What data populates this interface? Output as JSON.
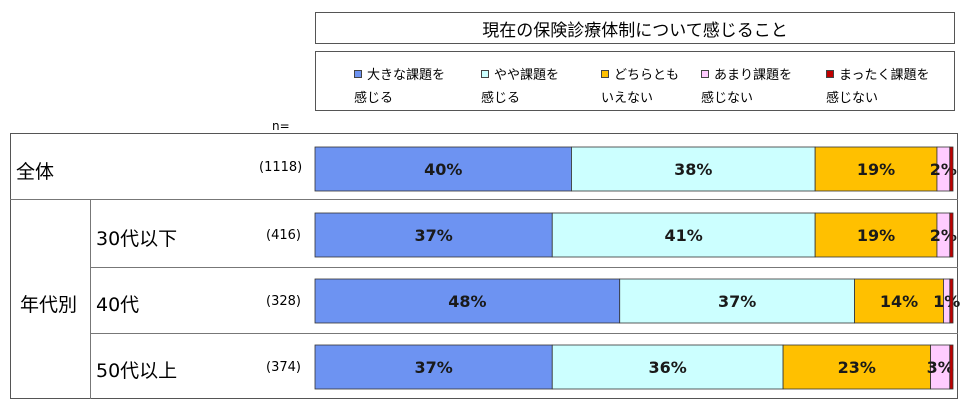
{
  "chart_data": {
    "type": "bar",
    "orientation": "horizontal",
    "stacked": true,
    "percent": true,
    "title": "現在の保険診療体制について感じること",
    "n_header": "n=",
    "group_label": "年代別",
    "legend": [
      {
        "line1": "大きな課題を",
        "line2": "感じる"
      },
      {
        "line1": "やや課題を",
        "line2": "感じる"
      },
      {
        "line1": "どちらとも",
        "line2": "いえない"
      },
      {
        "line1": "あまり課題を",
        "line2": "感じない"
      },
      {
        "line1": "まったく課題を",
        "line2": "感じない"
      }
    ],
    "colors": [
      "#6d93f2",
      "#ccffff",
      "#ffc000",
      "#ffccff",
      "#c00000"
    ],
    "series": [
      {
        "name": "大きな課題を感じる",
        "values": [
          40,
          37,
          48,
          37
        ]
      },
      {
        "name": "やや課題を感じる",
        "values": [
          38,
          41,
          37,
          36
        ]
      },
      {
        "name": "どちらともいえない",
        "values": [
          19,
          19,
          14,
          23
        ]
      },
      {
        "name": "あまり課題を感じない",
        "values": [
          2,
          2,
          1,
          3
        ]
      },
      {
        "name": "まったく課題を感じない",
        "values": [
          0.5,
          0.5,
          0.5,
          0.5
        ]
      }
    ],
    "rows": [
      {
        "label": "全体",
        "n": "(1118)",
        "labels": [
          "40%",
          "38%",
          "19%",
          "2%",
          ""
        ]
      },
      {
        "label": "30代以下",
        "n": "(416)",
        "labels": [
          "37%",
          "41%",
          "19%",
          "2%",
          ""
        ]
      },
      {
        "label": "40代",
        "n": "(328)",
        "labels": [
          "48%",
          "37%",
          "14%",
          "1%",
          ""
        ]
      },
      {
        "label": "50代以上",
        "n": "(374)",
        "labels": [
          "37%",
          "36%",
          "23%",
          "3%",
          ""
        ]
      }
    ],
    "xlim": [
      0,
      100
    ]
  }
}
